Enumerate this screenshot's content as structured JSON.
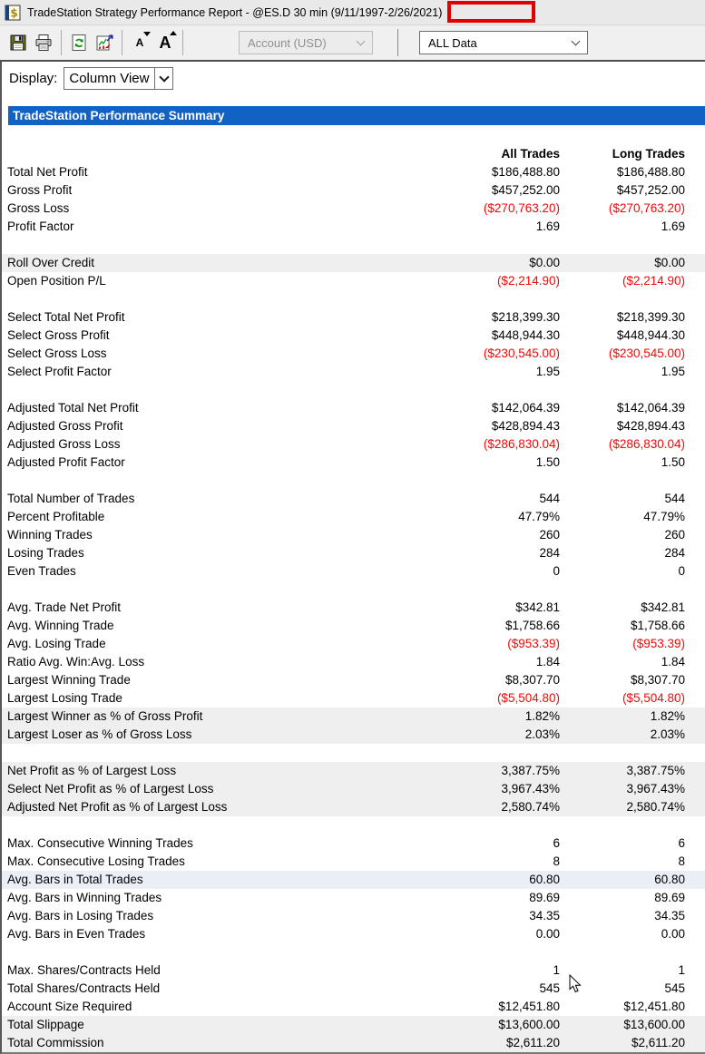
{
  "titlebar": {
    "title": "TradeStation Strategy Performance Report - @ES.D 30 min (9/11/1997-2/26/2021)"
  },
  "annotation": {
    "shape": "red-box",
    "around_text": "2/26/2021)"
  },
  "toolbar": {
    "buttons": [
      {
        "name": "save",
        "icon": "floppy-disk-icon"
      },
      {
        "name": "print",
        "icon": "printer-icon"
      },
      {
        "name": "refresh",
        "icon": "refresh-arrows-icon"
      },
      {
        "name": "report-format",
        "icon": "chart-page-icon"
      },
      {
        "name": "decrease-font",
        "icon": "small-letter-a-icon",
        "glyph": "A"
      },
      {
        "name": "increase-font",
        "icon": "large-letter-a-icon",
        "glyph": "A"
      }
    ],
    "account_selector": "Account (USD)",
    "account_selector_disabled": true,
    "data_range_selector": "ALL Data"
  },
  "display_bar": {
    "label": "Display:",
    "value": "Column View"
  },
  "report": {
    "title": "TradeStation Performance Summary",
    "columns": [
      "All Trades",
      "Long Trades"
    ],
    "sections": [
      {
        "rows": [
          {
            "label": "Total Net Profit",
            "all": "$186,488.80",
            "long": "$186,488.80"
          },
          {
            "label": "Gross Profit",
            "all": "$457,252.00",
            "long": "$457,252.00"
          },
          {
            "label": "Gross Loss",
            "all": "($270,763.20)",
            "long": "($270,763.20)",
            "negative": true
          },
          {
            "label": "Profit Factor",
            "all": "1.69",
            "long": "1.69"
          }
        ]
      },
      {
        "rows": [
          {
            "label": "Roll Over Credit",
            "all": "$0.00",
            "long": "$0.00",
            "shade": "gray"
          },
          {
            "label": "Open Position P/L",
            "all": "($2,214.90)",
            "long": "($2,214.90)",
            "negative": true
          }
        ]
      },
      {
        "rows": [
          {
            "label": "Select Total Net Profit",
            "all": "$218,399.30",
            "long": "$218,399.30"
          },
          {
            "label": "Select Gross Profit",
            "all": "$448,944.30",
            "long": "$448,944.30"
          },
          {
            "label": "Select Gross Loss",
            "all": "($230,545.00)",
            "long": "($230,545.00)",
            "negative": true
          },
          {
            "label": "Select Profit Factor",
            "all": "1.95",
            "long": "1.95"
          }
        ]
      },
      {
        "rows": [
          {
            "label": "Adjusted Total Net Profit",
            "all": "$142,064.39",
            "long": "$142,064.39"
          },
          {
            "label": "Adjusted Gross Profit",
            "all": "$428,894.43",
            "long": "$428,894.43"
          },
          {
            "label": "Adjusted Gross Loss",
            "all": "($286,830.04)",
            "long": "($286,830.04)",
            "negative": true
          },
          {
            "label": "Adjusted Profit Factor",
            "all": "1.50",
            "long": "1.50"
          }
        ]
      },
      {
        "rows": [
          {
            "label": "Total Number of Trades",
            "all": "544",
            "long": "544"
          },
          {
            "label": "Percent Profitable",
            "all": "47.79%",
            "long": "47.79%"
          },
          {
            "label": "Winning Trades",
            "all": "260",
            "long": "260"
          },
          {
            "label": "Losing Trades",
            "all": "284",
            "long": "284"
          },
          {
            "label": "Even Trades",
            "all": "0",
            "long": "0"
          }
        ]
      },
      {
        "rows": [
          {
            "label": "Avg. Trade Net Profit",
            "all": "$342.81",
            "long": "$342.81"
          },
          {
            "label": "Avg. Winning Trade",
            "all": "$1,758.66",
            "long": "$1,758.66"
          },
          {
            "label": "Avg. Losing Trade",
            "all": "($953.39)",
            "long": "($953.39)",
            "negative": true
          },
          {
            "label": "Ratio Avg. Win:Avg. Loss",
            "all": "1.84",
            "long": "1.84"
          },
          {
            "label": "Largest Winning Trade",
            "all": "$8,307.70",
            "long": "$8,307.70"
          },
          {
            "label": "Largest Losing Trade",
            "all": "($5,504.80)",
            "long": "($5,504.80)",
            "negative": true
          },
          {
            "label": "Largest Winner as % of Gross Profit",
            "all": "1.82%",
            "long": "1.82%",
            "shade": "gray"
          },
          {
            "label": "Largest Loser as % of Gross Loss",
            "all": "2.03%",
            "long": "2.03%",
            "shade": "gray"
          }
        ]
      },
      {
        "rows": [
          {
            "label": "Net Profit as % of Largest Loss",
            "all": "3,387.75%",
            "long": "3,387.75%",
            "shade": "gray"
          },
          {
            "label": "Select Net Profit as % of Largest Loss",
            "all": "3,967.43%",
            "long": "3,967.43%",
            "shade": "gray"
          },
          {
            "label": "Adjusted Net Profit as % of Largest Loss",
            "all": "2,580.74%",
            "long": "2,580.74%",
            "shade": "gray"
          }
        ]
      },
      {
        "rows": [
          {
            "label": "Max. Consecutive Winning Trades",
            "all": "6",
            "long": "6"
          },
          {
            "label": "Max. Consecutive Losing Trades",
            "all": "8",
            "long": "8"
          },
          {
            "label": "Avg. Bars in Total Trades",
            "all": "60.80",
            "long": "60.80",
            "shade": "blue"
          },
          {
            "label": "Avg. Bars in Winning Trades",
            "all": "89.69",
            "long": "89.69"
          },
          {
            "label": "Avg. Bars in Losing Trades",
            "all": "34.35",
            "long": "34.35"
          },
          {
            "label": "Avg. Bars in Even Trades",
            "all": "0.00",
            "long": "0.00"
          }
        ]
      },
      {
        "rows": [
          {
            "label": "Max. Shares/Contracts Held",
            "all": "1",
            "long": "1"
          },
          {
            "label": "Total Shares/Contracts Held",
            "all": "545",
            "long": "545"
          },
          {
            "label": "Account Size Required",
            "all": "$12,451.80",
            "long": "$12,451.80"
          },
          {
            "label": "Total Slippage",
            "all": "$13,600.00",
            "long": "$13,600.00",
            "shade": "gray"
          },
          {
            "label": "Total Commission",
            "all": "$2,611.20",
            "long": "$2,611.20",
            "shade": "gray"
          }
        ]
      }
    ]
  },
  "colors": {
    "header_blue": "#1262c4",
    "negative_red": "#fa0505",
    "annotation_red": "#e10000",
    "shaded_row": "#efefef",
    "shaded_row_blue": "#eaeff7"
  }
}
